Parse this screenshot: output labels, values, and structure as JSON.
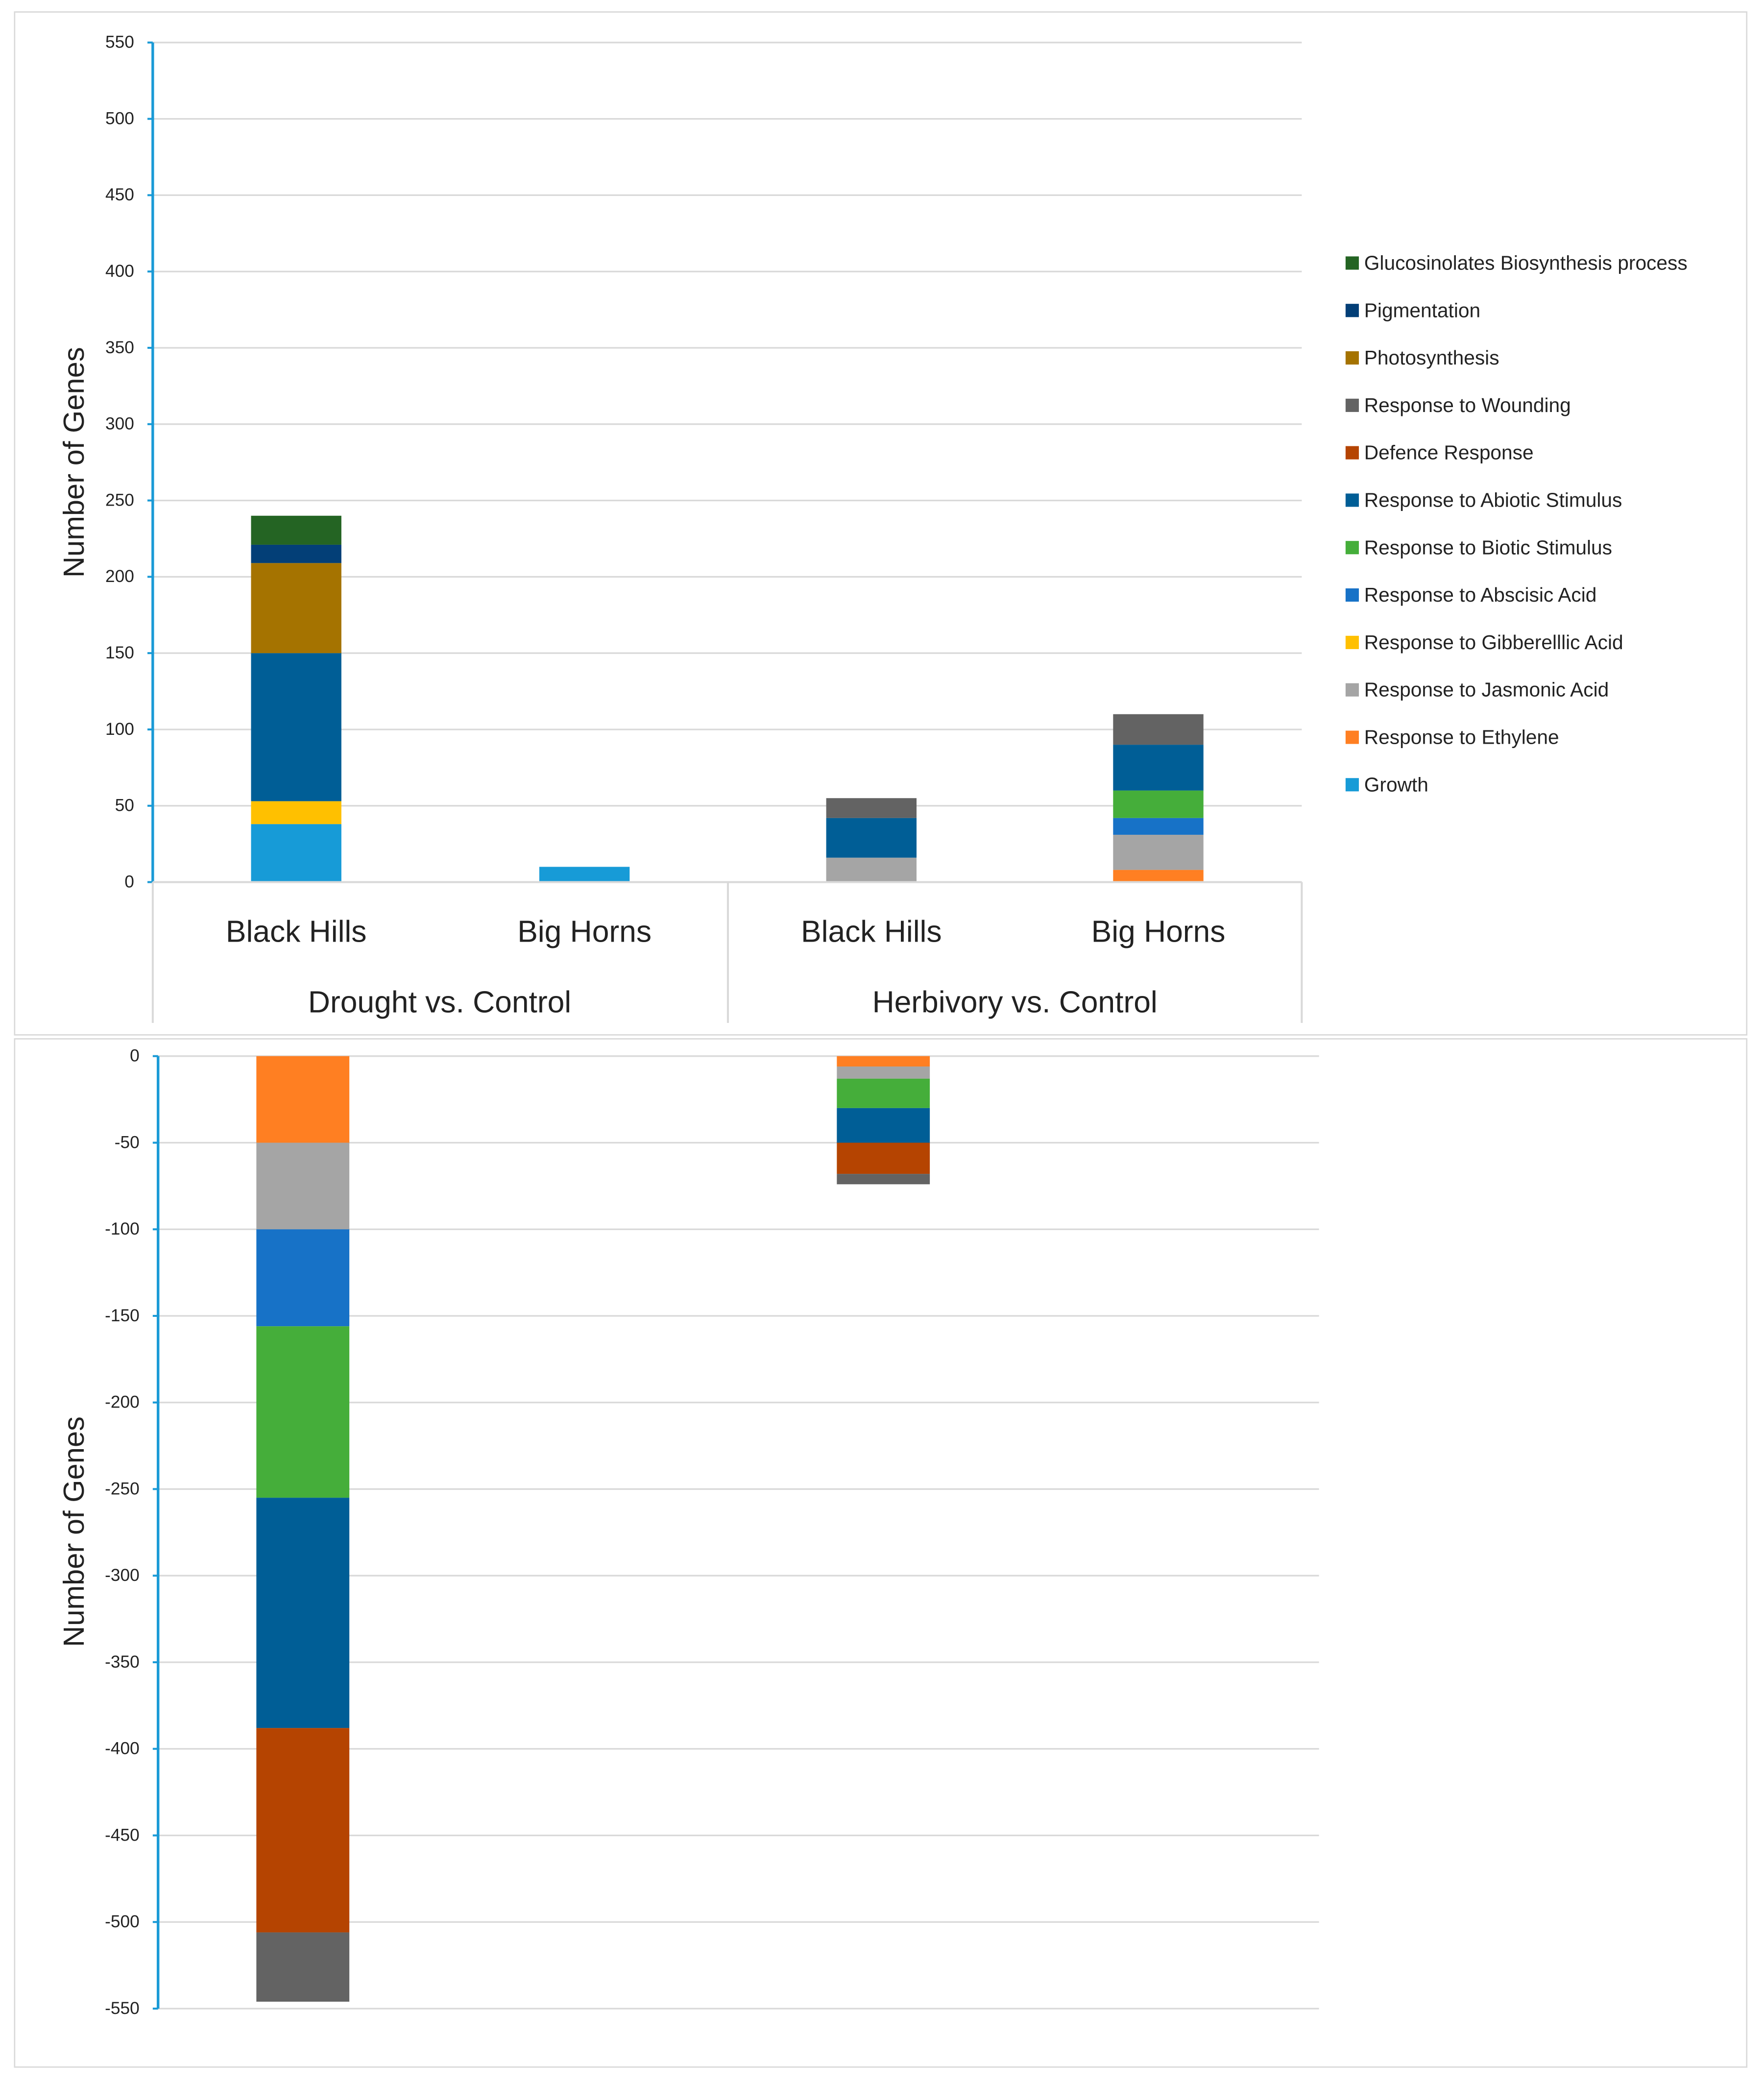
{
  "colors": {
    "Glucosinolates Biosynthesis process": "#246423",
    "Pigmentation": "#033f77",
    "Photosynthesis": "#a57300",
    "Response to Wounding": "#636363",
    "Defence  Response": "#b54401",
    "Response to Abiotic Stimulus": "#005e96",
    "Response to Biotic Stimulus": "#45ae3a",
    "Response to Abscisic Acid": "#1772c7",
    "Response to Gibberelllic Acid": "#ffc000",
    "Response to Jasmonic Acid": "#a5a5a5",
    "Response to Ethylene": "#ff7f22",
    "Growth": "#179bd7"
  },
  "chart_data": [
    {
      "type": "bar",
      "stacked": true,
      "ylabel": "Number of Genes",
      "ylim": [
        0,
        550
      ],
      "yticks": [
        "0",
        "50",
        "100",
        "150",
        "200",
        "250",
        "300",
        "350",
        "400",
        "450",
        "500",
        "550"
      ],
      "grid": true,
      "legend_position": "right",
      "legend": [
        "Glucosinolates Biosynthesis process",
        "Pigmentation",
        "Photosynthesis",
        "Response to Wounding",
        "Defence  Response",
        "Response to Abiotic Stimulus",
        "Response to Biotic Stimulus",
        "Response to Abscisic Acid",
        "Response to Gibberelllic Acid",
        "Response to Jasmonic Acid",
        "Response to Ethylene",
        "Growth"
      ],
      "categories": [
        "Black Hills",
        "Big Horns",
        "Black Hills",
        "Big Horns"
      ],
      "groups": [
        "Drought vs. Control",
        "Herbivory vs. Control"
      ],
      "series": [
        {
          "name": "Growth",
          "values": [
            38,
            10,
            0,
            0
          ]
        },
        {
          "name": "Response to Ethylene",
          "values": [
            0,
            0,
            0,
            8
          ]
        },
        {
          "name": "Response to Jasmonic Acid",
          "values": [
            0,
            0,
            16,
            23
          ]
        },
        {
          "name": "Response to Gibberelllic Acid",
          "values": [
            15,
            0,
            0,
            0
          ]
        },
        {
          "name": "Response to Abscisic Acid",
          "values": [
            0,
            0,
            0,
            11
          ]
        },
        {
          "name": "Response to Biotic Stimulus",
          "values": [
            0,
            0,
            0,
            18
          ]
        },
        {
          "name": "Response to Abiotic Stimulus",
          "values": [
            97,
            0,
            26,
            30
          ]
        },
        {
          "name": "Defence  Response",
          "values": [
            0,
            0,
            0,
            0
          ]
        },
        {
          "name": "Response to Wounding",
          "values": [
            0,
            0,
            13,
            20
          ]
        },
        {
          "name": "Photosynthesis",
          "values": [
            59,
            0,
            0,
            0
          ]
        },
        {
          "name": "Pigmentation",
          "values": [
            12,
            0,
            0,
            0
          ]
        },
        {
          "name": "Glucosinolates Biosynthesis process",
          "values": [
            19,
            0,
            0,
            0
          ]
        }
      ]
    },
    {
      "type": "bar",
      "stacked": true,
      "ylabel": "Number of Genes",
      "ylim": [
        -550,
        0
      ],
      "yticks": [
        "0",
        "-50",
        "-100",
        "-150",
        "-200",
        "-250",
        "-300",
        "-350",
        "-400",
        "-450",
        "-500",
        "-550"
      ],
      "grid": true,
      "categories": [
        "Black Hills",
        "Big Horns",
        "Black Hills",
        "Big Horns"
      ],
      "series": [
        {
          "name": "Response to Ethylene",
          "values": [
            -50,
            0,
            -6,
            0
          ]
        },
        {
          "name": "Response to Jasmonic Acid",
          "values": [
            -50,
            0,
            -7,
            0
          ]
        },
        {
          "name": "Response to Abscisic Acid",
          "values": [
            -56,
            0,
            0,
            0
          ]
        },
        {
          "name": "Response to Biotic Stimulus",
          "values": [
            -99,
            0,
            -17,
            0
          ]
        },
        {
          "name": "Response to Abiotic Stimulus",
          "values": [
            -133,
            0,
            -20,
            0
          ]
        },
        {
          "name": "Defence  Response",
          "values": [
            -118,
            0,
            -18,
            0
          ]
        },
        {
          "name": "Response to Wounding",
          "values": [
            -40,
            0,
            -6,
            0
          ]
        }
      ]
    }
  ]
}
